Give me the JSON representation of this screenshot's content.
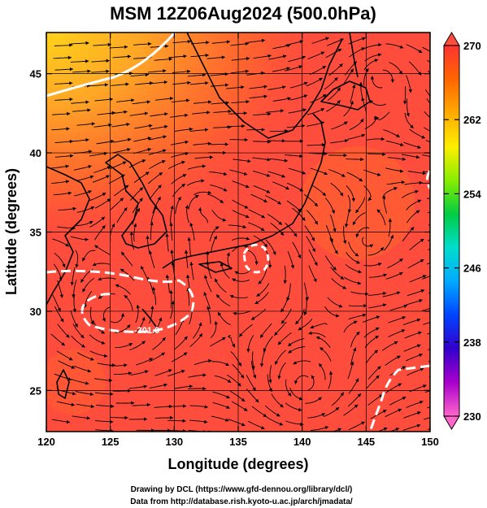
{
  "chart_data": {
    "type": "heatmap",
    "title": "MSM 12Z06Aug2024 (500.0hPa)",
    "xlabel": "Longitude (degrees)",
    "ylabel": "Latitude  (degrees)",
    "xlim": [
      120,
      150
    ],
    "ylim": [
      22.4,
      47.6
    ],
    "x_ticks": [
      120,
      125,
      130,
      135,
      140,
      145,
      150
    ],
    "y_ticks": [
      25,
      30,
      35,
      40,
      45
    ],
    "colorbar": {
      "min": 230,
      "max": 270,
      "ticks": [
        270,
        262,
        254,
        246,
        238,
        230
      ],
      "colors": [
        "#ff66cc",
        "#aa00cc",
        "#3300cc",
        "#0044ff",
        "#00aaff",
        "#00ddcc",
        "#00cc44",
        "#88ee00",
        "#ffee00",
        "#ffaa00",
        "#ff6600",
        "#ff3333"
      ]
    },
    "contour_label": "-301.0",
    "field_description": "Temperature field mostly ~268 with warmer orange-yellow region in the northwest; streamlines of wind overlaid; coastlines of East Asia drawn in black."
  },
  "credits": {
    "line1": "Drawing by DCL (https://www.gfd-dennou.org/library/dcl/)",
    "line2": "Data from http://database.rish.kyoto-u.ac.jp/arch/jmadata/"
  },
  "colors": {
    "field_base": "#ff4d3d",
    "field_warm": "#ff7a22",
    "field_yellow": "#ffd21a",
    "contour": "#ffffff",
    "lines": "#000000"
  }
}
